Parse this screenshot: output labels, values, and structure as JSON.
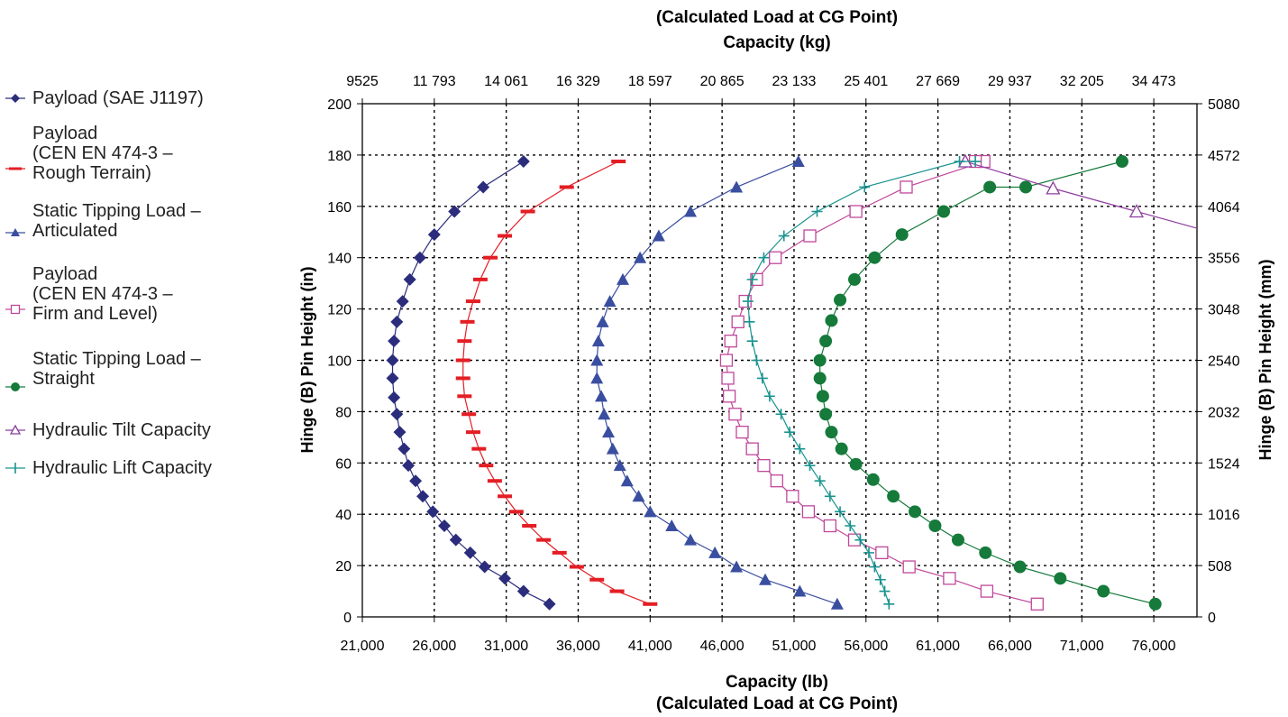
{
  "chart_data": {
    "type": "scatter",
    "top_title_line1": "(Calculated Load at CG Point)",
    "top_title_line2": "Capacity (kg)",
    "bottom_title_line1": "Capacity (lb)",
    "bottom_title_line2": "(Calculated Load at CG Point)",
    "ylabel_left": "Hinge (B) Pin Height (in)",
    "ylabel_right": "Hinge (B) Pin Height (mm)",
    "xlim": [
      21000,
      79000
    ],
    "ylim": [
      0,
      200
    ],
    "grid": true,
    "legend_position": "left",
    "x_ticks": [
      21000,
      26000,
      31000,
      36000,
      41000,
      46000,
      51000,
      56000,
      61000,
      66000,
      71000,
      76000
    ],
    "x_tick_labels": [
      "21,000",
      "26,000",
      "31,000",
      "36,000",
      "41,000",
      "46,000",
      "51,000",
      "56,000",
      "61,000",
      "66,000",
      "71,000",
      "76,000"
    ],
    "y_ticks": [
      0,
      20,
      40,
      60,
      80,
      100,
      120,
      140,
      160,
      180,
      200
    ],
    "y_tick_labels": [
      "0",
      "20",
      "40",
      "60",
      "80",
      "100",
      "120",
      "140",
      "160",
      "180",
      "200"
    ],
    "x2_tick_labels": [
      "9525",
      "11 793",
      "14 061",
      "16 329",
      "18 597",
      "20 865",
      "23 133",
      "25 401",
      "27 669",
      "29 937",
      "32 205",
      "34 473"
    ],
    "y2_tick_labels": [
      "0",
      "508",
      "1016",
      "1524",
      "2032",
      "2540",
      "3048",
      "3556",
      "4064",
      "4572",
      "5080"
    ],
    "series": [
      {
        "name": "Payload (SAE J1197)",
        "color": "#2b2d7c",
        "marker": "diamond",
        "points": [
          [
            34000,
            5
          ],
          [
            32200,
            10
          ],
          [
            30900,
            15
          ],
          [
            29500,
            19.5
          ],
          [
            28500,
            25
          ],
          [
            27500,
            30
          ],
          [
            26700,
            35.5
          ],
          [
            25900,
            41
          ],
          [
            25200,
            47
          ],
          [
            24700,
            53
          ],
          [
            24200,
            59
          ],
          [
            23900,
            65.5
          ],
          [
            23600,
            72
          ],
          [
            23400,
            79
          ],
          [
            23200,
            85.5
          ],
          [
            23100,
            93
          ],
          [
            23100,
            100
          ],
          [
            23200,
            107.5
          ],
          [
            23400,
            115
          ],
          [
            23800,
            123
          ],
          [
            24300,
            131.5
          ],
          [
            25000,
            140
          ],
          [
            26000,
            149
          ],
          [
            27400,
            158
          ],
          [
            29400,
            167.5
          ],
          [
            32200,
            177.5
          ]
        ]
      },
      {
        "name": "Payload\n(CEN EN 474-3 –\nRough Terrain)",
        "color": "#e31e24",
        "marker": "dash",
        "points": [
          [
            41000,
            5
          ],
          [
            38700,
            10
          ],
          [
            37300,
            14.5
          ],
          [
            35900,
            19.5
          ],
          [
            34700,
            25
          ],
          [
            33600,
            30
          ],
          [
            32600,
            35.5
          ],
          [
            31700,
            41
          ],
          [
            30900,
            47
          ],
          [
            30200,
            53
          ],
          [
            29600,
            59
          ],
          [
            29100,
            65.5
          ],
          [
            28700,
            72
          ],
          [
            28400,
            79
          ],
          [
            28100,
            86
          ],
          [
            28000,
            93
          ],
          [
            28000,
            100
          ],
          [
            28100,
            107.5
          ],
          [
            28300,
            115
          ],
          [
            28700,
            123
          ],
          [
            29200,
            131.5
          ],
          [
            29900,
            140
          ],
          [
            30900,
            148.5
          ],
          [
            32500,
            158
          ],
          [
            35200,
            167.5
          ],
          [
            38800,
            177.5
          ]
        ]
      },
      {
        "name": "Static Tipping Load –\nArticulated",
        "color": "#3a4ea0",
        "marker": "triangle",
        "points": [
          [
            54000,
            5
          ],
          [
            51400,
            10
          ],
          [
            49000,
            14.5
          ],
          [
            47000,
            19.5
          ],
          [
            45500,
            25
          ],
          [
            43800,
            30
          ],
          [
            42500,
            35.5
          ],
          [
            41000,
            41
          ],
          [
            40200,
            47
          ],
          [
            39400,
            53
          ],
          [
            38900,
            59
          ],
          [
            38400,
            65.5
          ],
          [
            38100,
            72
          ],
          [
            37800,
            79
          ],
          [
            37600,
            86
          ],
          [
            37300,
            93
          ],
          [
            37300,
            100
          ],
          [
            37400,
            107.5
          ],
          [
            37700,
            115
          ],
          [
            38200,
            123
          ],
          [
            39100,
            131.5
          ],
          [
            40300,
            140
          ],
          [
            41600,
            148.5
          ],
          [
            43800,
            158
          ],
          [
            47000,
            167.5
          ],
          [
            51300,
            177.5
          ]
        ]
      },
      {
        "name": "Payload\n(CEN EN 474-3 –\nFirm and Level)",
        "color": "#c0479a",
        "marker": "square",
        "points": [
          [
            67900,
            5
          ],
          [
            64400,
            10
          ],
          [
            61800,
            15
          ],
          [
            59000,
            19.5
          ],
          [
            57100,
            25
          ],
          [
            55200,
            30
          ],
          [
            53500,
            35.5
          ],
          [
            52000,
            41
          ],
          [
            50900,
            47
          ],
          [
            49800,
            53
          ],
          [
            48900,
            59
          ],
          [
            48100,
            65.5
          ],
          [
            47400,
            72
          ],
          [
            46900,
            79
          ],
          [
            46500,
            86
          ],
          [
            46400,
            93
          ],
          [
            46300,
            100
          ],
          [
            46600,
            107.5
          ],
          [
            47100,
            115
          ],
          [
            47600,
            123
          ],
          [
            48400,
            131.5
          ],
          [
            49700,
            140
          ],
          [
            52100,
            148.5
          ],
          [
            55300,
            158
          ],
          [
            58800,
            167.5
          ],
          [
            64200,
            177.5
          ],
          [
            63600,
            177.5
          ]
        ]
      },
      {
        "name": "Static Tipping Load –\nStraight",
        "color": "#157a3a",
        "marker": "circle",
        "points": [
          [
            76100,
            5
          ],
          [
            72500,
            10
          ],
          [
            69500,
            15
          ],
          [
            66700,
            19.5
          ],
          [
            64300,
            25
          ],
          [
            62400,
            30
          ],
          [
            60800,
            35.5
          ],
          [
            59400,
            41
          ],
          [
            57900,
            47
          ],
          [
            56500,
            53.5
          ],
          [
            55300,
            59.5
          ],
          [
            54300,
            65.5
          ],
          [
            53600,
            72
          ],
          [
            53200,
            79
          ],
          [
            53000,
            86
          ],
          [
            52800,
            93
          ],
          [
            52800,
            100
          ],
          [
            53200,
            107.5
          ],
          [
            53600,
            115.5
          ],
          [
            54200,
            123.5
          ],
          [
            55200,
            131.5
          ],
          [
            56600,
            140
          ],
          [
            58500,
            149
          ],
          [
            61400,
            158
          ],
          [
            64600,
            167.5
          ],
          [
            67100,
            167.5
          ],
          [
            73800,
            177.5
          ]
        ]
      },
      {
        "name": "Hydraulic Tilt Capacity",
        "color": "#8e3ea0",
        "marker": "triangle-open",
        "points": [
          [
            62900,
            177.5
          ],
          [
            69000,
            167
          ],
          [
            74800,
            158
          ]
        ]
      },
      {
        "name": "Hydraulic Lift Capacity",
        "color": "#19938f",
        "marker": "plus",
        "points": [
          [
            57600,
            5
          ],
          [
            57300,
            10
          ],
          [
            57000,
            14.5
          ],
          [
            56600,
            19.5
          ],
          [
            56200,
            25
          ],
          [
            55600,
            30
          ],
          [
            54900,
            35.5
          ],
          [
            54200,
            41
          ],
          [
            53500,
            47
          ],
          [
            52800,
            53
          ],
          [
            52100,
            59
          ],
          [
            51400,
            65.5
          ],
          [
            50700,
            72
          ],
          [
            50100,
            79
          ],
          [
            49300,
            86
          ],
          [
            48800,
            93
          ],
          [
            48400,
            100
          ],
          [
            48100,
            107.5
          ],
          [
            47900,
            115
          ],
          [
            47800,
            123
          ],
          [
            48100,
            131.5
          ],
          [
            48900,
            140
          ],
          [
            50300,
            148.5
          ],
          [
            52600,
            158
          ],
          [
            55900,
            167.5
          ],
          [
            62500,
            177.5
          ],
          [
            63600,
            177.5
          ]
        ]
      }
    ]
  }
}
